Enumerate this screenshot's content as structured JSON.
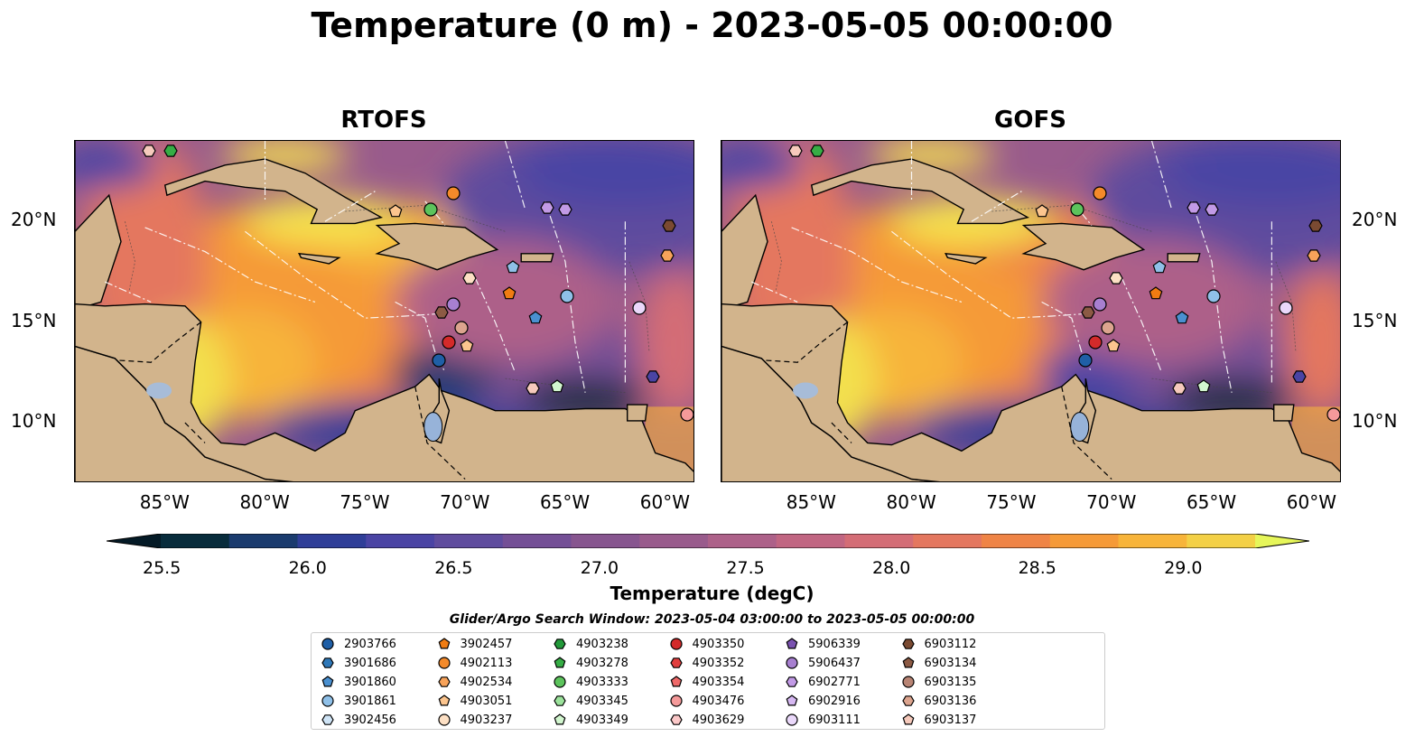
{
  "title": "Temperature (0 m) - 2023-05-05 00:00:00",
  "panels": [
    {
      "title": "RTOFS"
    },
    {
      "title": "GOFS"
    }
  ],
  "axes": {
    "lon_ticks": [
      "85°W",
      "80°W",
      "75°W",
      "70°W",
      "65°W",
      "60°W"
    ],
    "lat_ticks": [
      "20°N",
      "15°N",
      "10°N"
    ]
  },
  "colorbar": {
    "label": "Temperature (degC)",
    "min": 25.5,
    "max": 29.25,
    "step": 0.25,
    "ticks": [
      "25.5",
      "26.0",
      "26.5",
      "27.0",
      "27.5",
      "28.0",
      "28.5",
      "29.0"
    ],
    "colors": [
      "#082c3c",
      "#1a3b6e",
      "#2f3e98",
      "#4a44a4",
      "#5f4c9e",
      "#744f96",
      "#87558f",
      "#995b8c",
      "#ad6189",
      "#c16682",
      "#d46d76",
      "#e4775f",
      "#ef8446",
      "#f59a38",
      "#f7b43a",
      "#f3d046"
    ],
    "extend_low": "#041a26",
    "extend_high": "#e6f65a"
  },
  "land_color": "#d2b48c",
  "search_window": "Glider/Argo Search Window: 2023-05-04 03:00:00 to 2023-05-05 00:00:00",
  "legend": [
    {
      "id": "2903766",
      "marker": "circle",
      "color": "#1f5fa6"
    },
    {
      "id": "3901686",
      "marker": "hexagon",
      "color": "#2f78b8"
    },
    {
      "id": "3901860",
      "marker": "pentagon",
      "color": "#4a90d0"
    },
    {
      "id": "3901861",
      "marker": "circle",
      "color": "#8fc0e8"
    },
    {
      "id": "3902456",
      "marker": "hexagon",
      "color": "#cfe4f6"
    },
    {
      "id": "3902457",
      "marker": "pentagon",
      "color": "#f07c12"
    },
    {
      "id": "4902113",
      "marker": "circle",
      "color": "#f48a2a"
    },
    {
      "id": "4902534",
      "marker": "hexagon",
      "color": "#f8a35a"
    },
    {
      "id": "4903051",
      "marker": "pentagon",
      "color": "#fcc58e"
    },
    {
      "id": "4903237",
      "marker": "circle",
      "color": "#fde0c4"
    },
    {
      "id": "4903238",
      "marker": "hexagon",
      "color": "#239a3a"
    },
    {
      "id": "4903278",
      "marker": "pentagon",
      "color": "#36ad45"
    },
    {
      "id": "4903333",
      "marker": "circle",
      "color": "#5cc35c"
    },
    {
      "id": "4903345",
      "marker": "hexagon",
      "color": "#9be29b"
    },
    {
      "id": "4903349",
      "marker": "pentagon",
      "color": "#d2f6cf"
    },
    {
      "id": "4903350",
      "marker": "circle",
      "color": "#d42a2a"
    },
    {
      "id": "4903352",
      "marker": "hexagon",
      "color": "#e23e3e"
    },
    {
      "id": "4903354",
      "marker": "pentagon",
      "color": "#ef6a6a"
    },
    {
      "id": "4903476",
      "marker": "circle",
      "color": "#f59a9a"
    },
    {
      "id": "4903629",
      "marker": "hexagon",
      "color": "#fbc8c8"
    },
    {
      "id": "5906339",
      "marker": "pentagon",
      "color": "#7a52b0"
    },
    {
      "id": "5906437",
      "marker": "circle",
      "color": "#a77fd0"
    },
    {
      "id": "6902771",
      "marker": "hexagon",
      "color": "#c29ae6"
    },
    {
      "id": "6902916",
      "marker": "pentagon",
      "color": "#d6b8f2"
    },
    {
      "id": "6903111",
      "marker": "circle",
      "color": "#ead8fa"
    },
    {
      "id": "6903112",
      "marker": "hexagon",
      "color": "#7a4a32"
    },
    {
      "id": "6903134",
      "marker": "pentagon",
      "color": "#8c5a44"
    },
    {
      "id": "6903135",
      "marker": "circle",
      "color": "#b88474"
    },
    {
      "id": "6903136",
      "marker": "hexagon",
      "color": "#dca48e"
    },
    {
      "id": "6903137",
      "marker": "pentagon",
      "color": "#f6cabc"
    }
  ]
}
